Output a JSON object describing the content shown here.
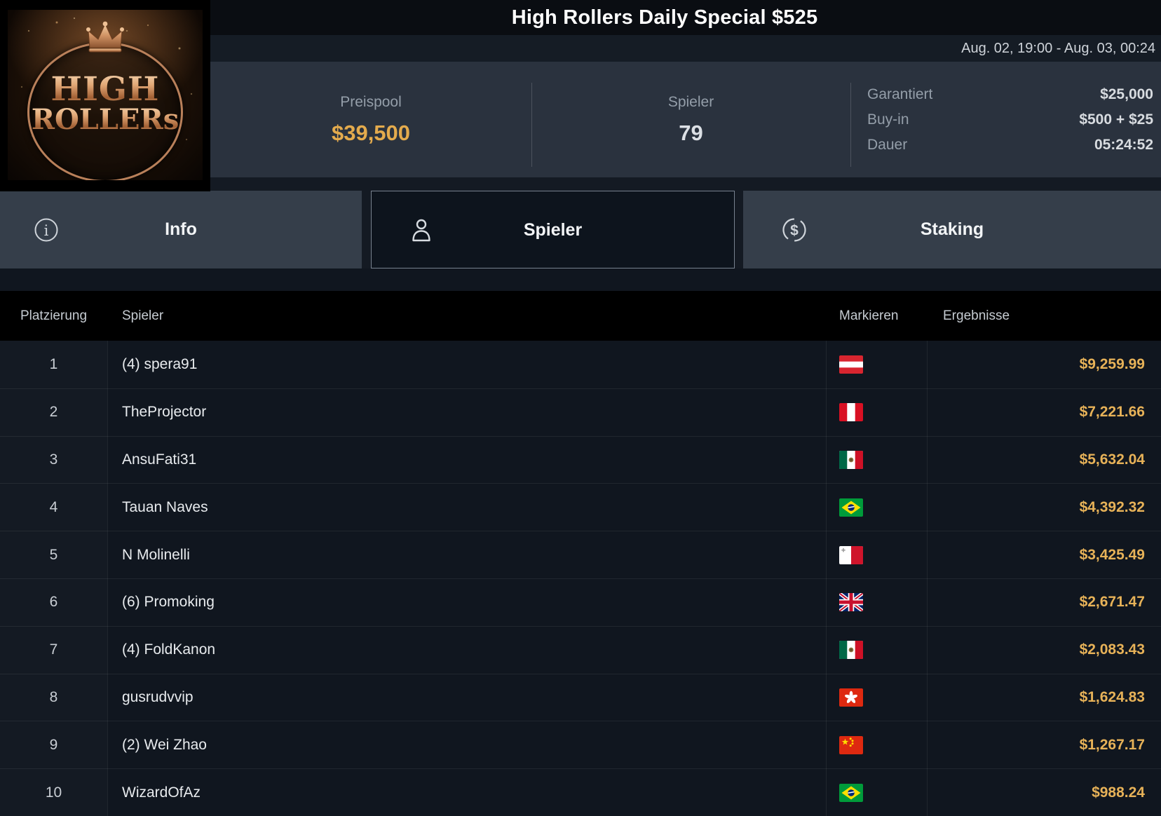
{
  "header": {
    "title": "High Rollers Daily Special $525",
    "date_range": "Aug. 02, 19:00 - Aug. 03, 00:24",
    "logo": {
      "line1": "HIGH",
      "line2": "ROLLERs"
    },
    "stats": [
      {
        "label": "Preispool",
        "value": "$39,500"
      },
      {
        "label": "Spieler",
        "value": "79"
      }
    ],
    "details": [
      {
        "label": "Garantiert",
        "value": "$25,000"
      },
      {
        "label": "Buy-in",
        "value": "$500 + $25"
      },
      {
        "label": "Dauer",
        "value": "05:24:52"
      }
    ]
  },
  "tabs": [
    {
      "label": "Info",
      "icon": "info-icon",
      "active": false
    },
    {
      "label": "Spieler",
      "icon": "person-icon",
      "active": true
    },
    {
      "label": "Staking",
      "icon": "staking-icon",
      "active": false
    }
  ],
  "table": {
    "columns": [
      "Platzierung",
      "Spieler",
      "Markieren",
      "Ergebnisse"
    ],
    "rows": [
      {
        "rank": "1",
        "player": "(4) spera91",
        "flag": "at",
        "flag_name": "austria-flag",
        "result": "$9,259.99"
      },
      {
        "rank": "2",
        "player": "TheProjector",
        "flag": "pe",
        "flag_name": "peru-flag",
        "result": "$7,221.66"
      },
      {
        "rank": "3",
        "player": "AnsuFati31",
        "flag": "mx",
        "flag_name": "mexico-flag",
        "result": "$5,632.04"
      },
      {
        "rank": "4",
        "player": "Tauan Naves",
        "flag": "br",
        "flag_name": "brazil-flag",
        "result": "$4,392.32"
      },
      {
        "rank": "5",
        "player": "N Molinelli",
        "flag": "mt",
        "flag_name": "malta-flag",
        "result": "$3,425.49"
      },
      {
        "rank": "6",
        "player": "(6) Promoking",
        "flag": "gb",
        "flag_name": "uk-flag",
        "result": "$2,671.47"
      },
      {
        "rank": "7",
        "player": "(4) FoldKanon",
        "flag": "mx",
        "flag_name": "mexico-flag",
        "result": "$2,083.43"
      },
      {
        "rank": "8",
        "player": "gusrudvvip",
        "flag": "hk",
        "flag_name": "hong-kong-flag",
        "result": "$1,624.83"
      },
      {
        "rank": "9",
        "player": "(2) Wei Zhao",
        "flag": "cn",
        "flag_name": "china-flag",
        "result": "$1,267.17"
      },
      {
        "rank": "10",
        "player": "WizardOfAz",
        "flag": "br",
        "flag_name": "brazil-flag",
        "result": "$988.24"
      }
    ]
  },
  "colors": {
    "gold": "#e4ab4d",
    "panel": "#2a323e",
    "header_black": "#000000",
    "active_tab_border": "#77818f"
  }
}
